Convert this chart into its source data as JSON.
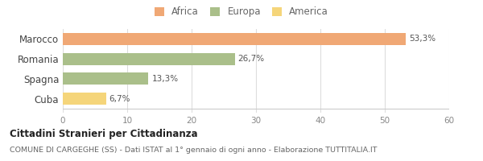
{
  "categories": [
    "Marocco",
    "Romania",
    "Spagna",
    "Cuba"
  ],
  "values": [
    53.3,
    26.7,
    13.3,
    6.7
  ],
  "labels": [
    "53,3%",
    "26,7%",
    "13,3%",
    "6,7%"
  ],
  "colors": [
    "#F0A875",
    "#AABF8A",
    "#AABF8A",
    "#F5D57A"
  ],
  "legend": [
    {
      "label": "Africa",
      "color": "#F0A875"
    },
    {
      "label": "Europa",
      "color": "#AABF8A"
    },
    {
      "label": "America",
      "color": "#F5D57A"
    }
  ],
  "xlim": [
    0,
    60
  ],
  "xticks": [
    0,
    10,
    20,
    30,
    40,
    50,
    60
  ],
  "title_bold": "Cittadini Stranieri per Cittadinanza",
  "subtitle": "COMUNE DI CARGEGHE (SS) - Dati ISTAT al 1° gennaio di ogni anno - Elaborazione TUTTITALIA.IT",
  "background_color": "#ffffff",
  "grid_color": "#dddddd"
}
